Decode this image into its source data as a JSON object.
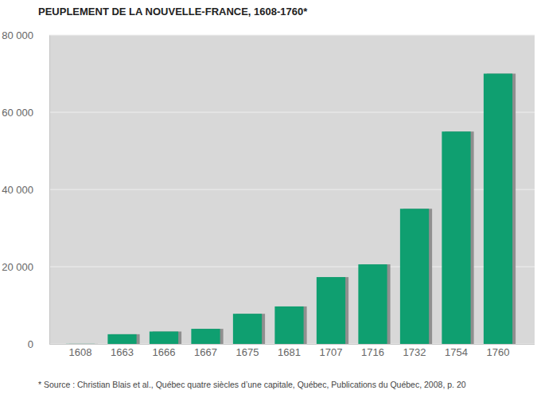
{
  "chart_data": {
    "type": "bar",
    "title": "PEUPLEMENT DE LA NOUVELLE-FRANCE, 1608-1760*",
    "categories": [
      "1608",
      "1663",
      "1666",
      "1667",
      "1675",
      "1681",
      "1707",
      "1716",
      "1732",
      "1754",
      "1760"
    ],
    "values": [
      28,
      2500,
      3200,
      3900,
      7800,
      9700,
      17300,
      20600,
      35000,
      55000,
      70000
    ],
    "color": "#0f9f70",
    "ylim": [
      0,
      80000
    ],
    "yticks": [
      0,
      {
        "value": 20000,
        "label": "20 000"
      },
      {
        "value": 40000,
        "label": "40 000"
      },
      {
        "value": 60000,
        "label": "60 000"
      },
      {
        "value": 80000,
        "label": "80 000"
      }
    ],
    "grid": true,
    "annotations": [
      "* Source : Christian Blais et al., Québec quatre siècles d’une capitale, Québec, Publications du Québec, 2008, p. 20"
    ]
  }
}
